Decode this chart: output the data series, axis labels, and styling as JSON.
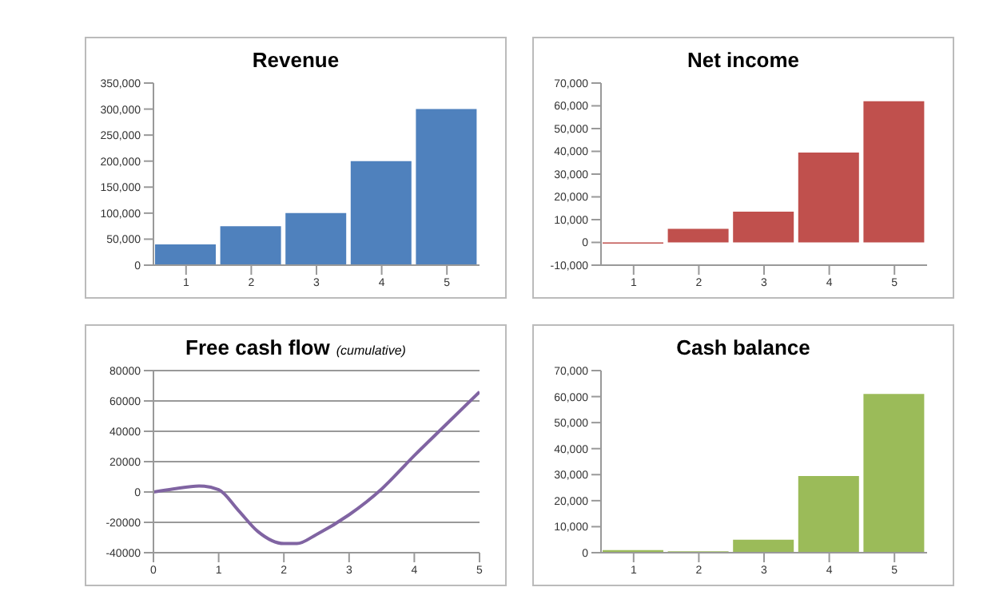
{
  "chart_data": [
    {
      "type": "bar",
      "title": "Revenue",
      "categories": [
        "1",
        "2",
        "3",
        "4",
        "5"
      ],
      "values": [
        40000,
        75000,
        100000,
        200000,
        300000
      ],
      "color": "#4f81bd",
      "ylim": [
        0,
        350000
      ],
      "yticks": [
        0,
        {
          "value": 50000,
          "label": "50,000"
        },
        {
          "value": 100000,
          "label": "100,000"
        },
        {
          "value": 150000,
          "label": "150,000"
        },
        {
          "value": 200000,
          "label": "200,000"
        },
        {
          "value": 250000,
          "label": "250,000"
        },
        {
          "value": 300000,
          "label": "300,000"
        },
        {
          "value": 350000,
          "label": "350,000"
        }
      ],
      "grid": false,
      "legend": false
    },
    {
      "type": "bar",
      "title": "Net income",
      "categories": [
        "1",
        "2",
        "3",
        "4",
        "5"
      ],
      "values": [
        -500,
        6000,
        13500,
        39500,
        62000
      ],
      "color": "#c0504d",
      "ylim": [
        -10000,
        70000
      ],
      "yticks": [
        {
          "value": -10000,
          "label": "-10,000"
        },
        0,
        {
          "value": 10000,
          "label": "10,000"
        },
        {
          "value": 20000,
          "label": "20,000"
        },
        {
          "value": 30000,
          "label": "30,000"
        },
        {
          "value": 40000,
          "label": "40,000"
        },
        {
          "value": 50000,
          "label": "50,000"
        },
        {
          "value": 60000,
          "label": "60,000"
        },
        {
          "value": 70000,
          "label": "70,000"
        }
      ],
      "grid": false,
      "legend": false
    },
    {
      "type": "line",
      "title": "Free cash flow",
      "subtitle": "(cumulative)",
      "x": [
        0,
        0.3,
        0.7,
        1,
        1.3,
        1.6,
        2,
        2.2,
        2.5,
        3,
        3.5,
        4,
        4.5,
        5
      ],
      "values": [
        0,
        2000,
        4000,
        1500,
        -12000,
        -26000,
        -34000,
        -34000,
        -28000,
        -15000,
        2000,
        24000,
        45000,
        66000
      ],
      "color": "#8064a2",
      "xlim": [
        0,
        5
      ],
      "xticks": [
        0,
        1,
        2,
        3,
        4,
        5
      ],
      "ylim": [
        -40000,
        80000
      ],
      "yticks": [
        -40000,
        -20000,
        0,
        20000,
        40000,
        60000,
        80000
      ],
      "grid": "y",
      "legend": false,
      "marker": "none",
      "line_style": "solid"
    },
    {
      "type": "bar",
      "title": "Cash balance",
      "categories": [
        "1",
        "2",
        "3",
        "4",
        "5"
      ],
      "values": [
        1000,
        500,
        5000,
        29500,
        61000
      ],
      "color": "#9bbb59",
      "ylim": [
        0,
        70000
      ],
      "yticks": [
        0,
        {
          "value": 10000,
          "label": "10,000"
        },
        {
          "value": 20000,
          "label": "20,000"
        },
        {
          "value": 30000,
          "label": "30,000"
        },
        {
          "value": 40000,
          "label": "40,000"
        },
        {
          "value": 50000,
          "label": "50,000"
        },
        {
          "value": 60000,
          "label": "60,000"
        },
        {
          "value": 70000,
          "label": "70,000"
        }
      ],
      "grid": false,
      "legend": false
    }
  ]
}
